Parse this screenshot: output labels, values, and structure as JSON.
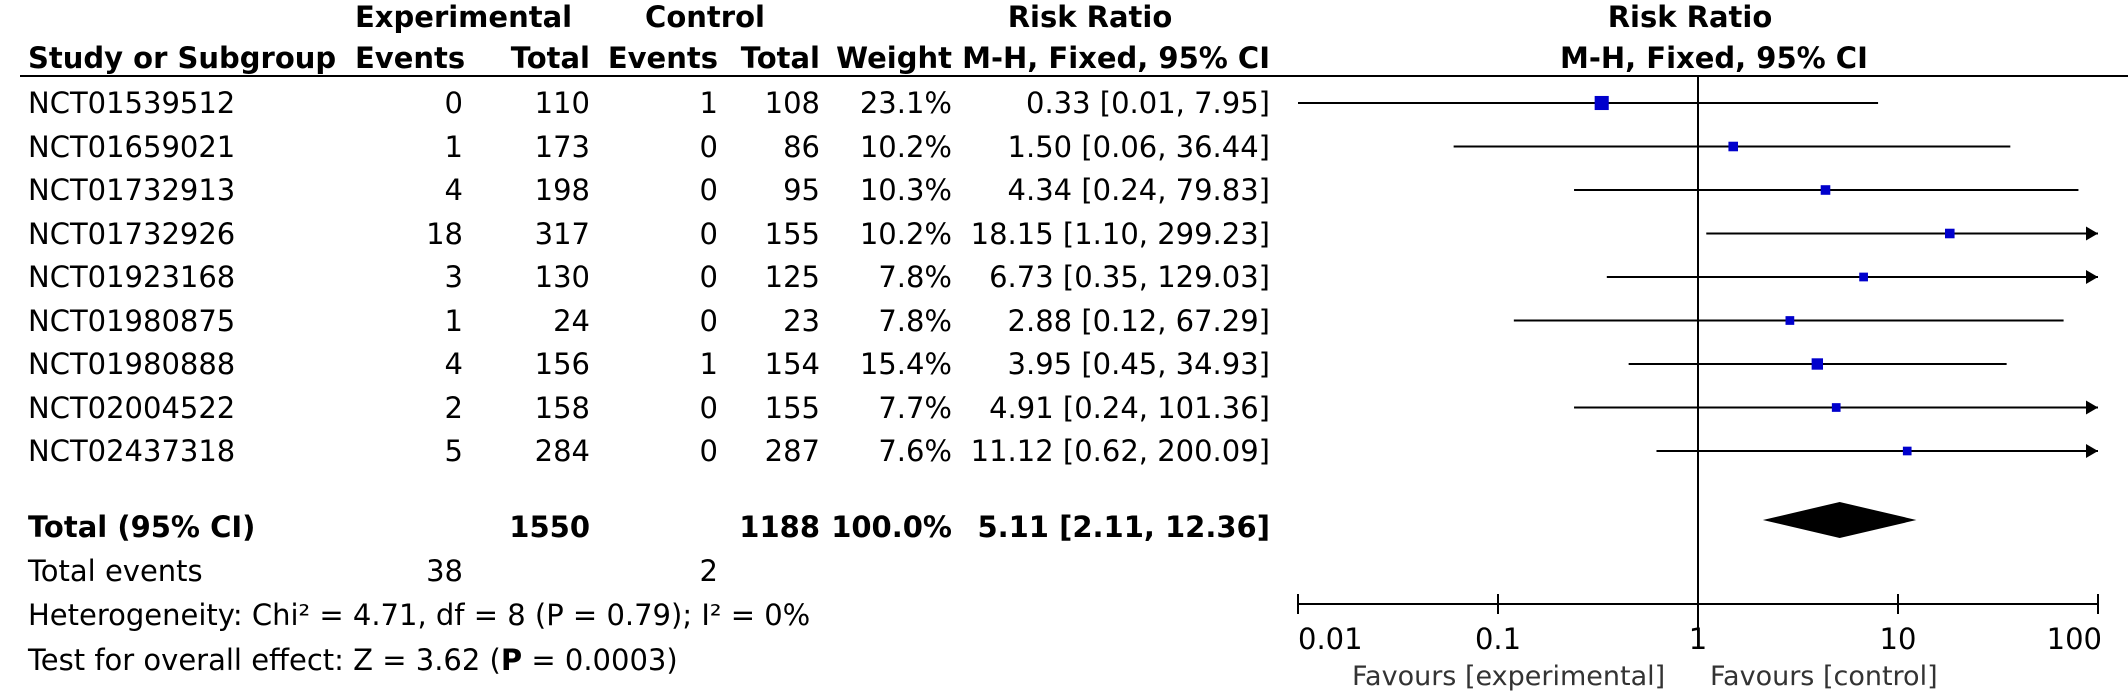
{
  "headers": {
    "experimental": "Experimental",
    "control": "Control",
    "risk_ratio": "Risk Ratio",
    "risk_ratio_plot": "Risk Ratio",
    "study": "Study or Subgroup",
    "exp_events": "Events",
    "exp_total": "Total",
    "ctl_events": "Events",
    "ctl_total": "Total",
    "weight": "Weight",
    "method": "M-H, Fixed, 95% CI",
    "method_plot": "M-H, Fixed, 95% CI"
  },
  "studies": [
    {
      "name": "NCT01539512",
      "exp_events": "0",
      "exp_total": "110",
      "ctl_events": "1",
      "ctl_total": "108",
      "weight": "23.1%",
      "rr_text": "0.33 [0.01, 7.95]"
    },
    {
      "name": "NCT01659021",
      "exp_events": "1",
      "exp_total": "173",
      "ctl_events": "0",
      "ctl_total": "86",
      "weight": "10.2%",
      "rr_text": "1.50 [0.06, 36.44]"
    },
    {
      "name": "NCT01732913",
      "exp_events": "4",
      "exp_total": "198",
      "ctl_events": "0",
      "ctl_total": "95",
      "weight": "10.3%",
      "rr_text": "4.34 [0.24, 79.83]"
    },
    {
      "name": "NCT01732926",
      "exp_events": "18",
      "exp_total": "317",
      "ctl_events": "0",
      "ctl_total": "155",
      "weight": "10.2%",
      "rr_text": "18.15 [1.10, 299.23]"
    },
    {
      "name": "NCT01923168",
      "exp_events": "3",
      "exp_total": "130",
      "ctl_events": "0",
      "ctl_total": "125",
      "weight": "7.8%",
      "rr_text": "6.73 [0.35, 129.03]"
    },
    {
      "name": "NCT01980875",
      "exp_events": "1",
      "exp_total": "24",
      "ctl_events": "0",
      "ctl_total": "23",
      "weight": "7.8%",
      "rr_text": "2.88 [0.12, 67.29]"
    },
    {
      "name": "NCT01980888",
      "exp_events": "4",
      "exp_total": "156",
      "ctl_events": "1",
      "ctl_total": "154",
      "weight": "15.4%",
      "rr_text": "3.95 [0.45, 34.93]"
    },
    {
      "name": "NCT02004522",
      "exp_events": "2",
      "exp_total": "158",
      "ctl_events": "0",
      "ctl_total": "155",
      "weight": "7.7%",
      "rr_text": "4.91 [0.24, 101.36]"
    },
    {
      "name": "NCT02437318",
      "exp_events": "5",
      "exp_total": "284",
      "ctl_events": "0",
      "ctl_total": "287",
      "weight": "7.6%",
      "rr_text": "11.12 [0.62, 200.09]"
    }
  ],
  "total": {
    "label": "Total (95% CI)",
    "exp_total": "1550",
    "ctl_total": "1188",
    "weight": "100.0%",
    "rr_text": "5.11 [2.11, 12.36]"
  },
  "total_events": {
    "label": "Total events",
    "exp": "38",
    "ctl": "2"
  },
  "heterogeneity": "Heterogeneity: Chi² = 4.71, df = 8 (P = 0.79); I² = 0%",
  "overall_effect": {
    "prefix": "Test for overall effect: Z = 3.62 (",
    "p_bold": "P",
    "suffix": " = 0.0003)"
  },
  "axis": {
    "ticks": [
      "0.01",
      "0.1",
      "1",
      "10",
      "100"
    ],
    "favours_left": "Favours [experimental]",
    "favours_right": "Favours [control]"
  },
  "colors": {
    "point": "#0000cc",
    "line": "#000000",
    "diamond": "#000000"
  },
  "chart_data": {
    "type": "forest",
    "scale": "log",
    "xlim": [
      0.01,
      100
    ],
    "reference_line": 1,
    "series": [
      {
        "study": "NCT01539512",
        "rr": 0.33,
        "lower": 0.01,
        "upper": 7.95,
        "weight": 23.1
      },
      {
        "study": "NCT01659021",
        "rr": 1.5,
        "lower": 0.06,
        "upper": 36.44,
        "weight": 10.2
      },
      {
        "study": "NCT01732913",
        "rr": 4.34,
        "lower": 0.24,
        "upper": 79.83,
        "weight": 10.3
      },
      {
        "study": "NCT01732926",
        "rr": 18.15,
        "lower": 1.1,
        "upper": 299.23,
        "weight": 10.2
      },
      {
        "study": "NCT01923168",
        "rr": 6.73,
        "lower": 0.35,
        "upper": 129.03,
        "weight": 7.8
      },
      {
        "study": "NCT01980875",
        "rr": 2.88,
        "lower": 0.12,
        "upper": 67.29,
        "weight": 7.8
      },
      {
        "study": "NCT01980888",
        "rr": 3.95,
        "lower": 0.45,
        "upper": 34.93,
        "weight": 15.4
      },
      {
        "study": "NCT02004522",
        "rr": 4.91,
        "lower": 0.24,
        "upper": 101.36,
        "weight": 7.7
      },
      {
        "study": "NCT02437318",
        "rr": 11.12,
        "lower": 0.62,
        "upper": 200.09,
        "weight": 7.6
      }
    ],
    "pooled": {
      "rr": 5.11,
      "lower": 2.11,
      "upper": 12.36
    }
  }
}
